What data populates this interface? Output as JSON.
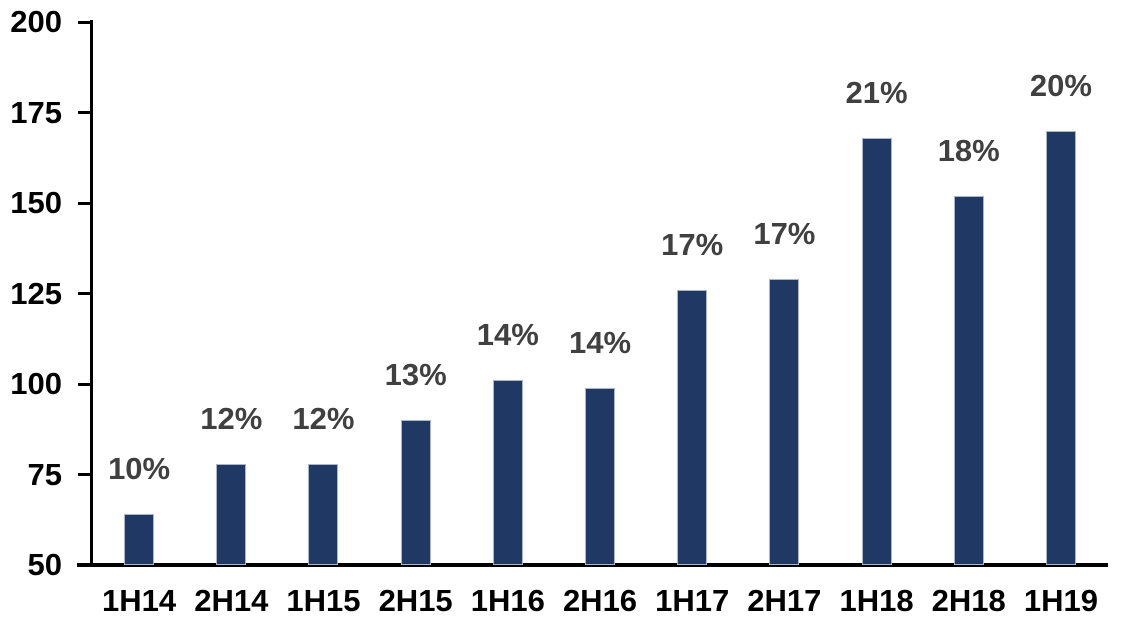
{
  "chart_data": {
    "type": "bar",
    "title": "",
    "xlabel": "",
    "ylabel": "",
    "categories": [
      "1H14",
      "2H14",
      "1H15",
      "2H15",
      "1H16",
      "2H16",
      "1H17",
      "2H17",
      "1H18",
      "2H18",
      "1H19"
    ],
    "values": [
      64,
      78,
      78,
      90,
      101,
      99,
      126,
      129,
      168,
      152,
      170
    ],
    "bar_labels": [
      "10%",
      "12%",
      "12%",
      "13%",
      "14%",
      "14%",
      "17%",
      "17%",
      "21%",
      "18%",
      "20%"
    ],
    "ylim": [
      50,
      200
    ],
    "yticks": [
      50,
      75,
      100,
      125,
      150,
      175,
      200
    ],
    "grid": false,
    "legend": "none",
    "colors": {
      "bar_fill": "#1F3864",
      "bar_border": "#A9B6C9",
      "value_label": "#404040",
      "axis_text": "#000000",
      "axis_line": "#000000",
      "background": "#FFFFFF"
    }
  }
}
